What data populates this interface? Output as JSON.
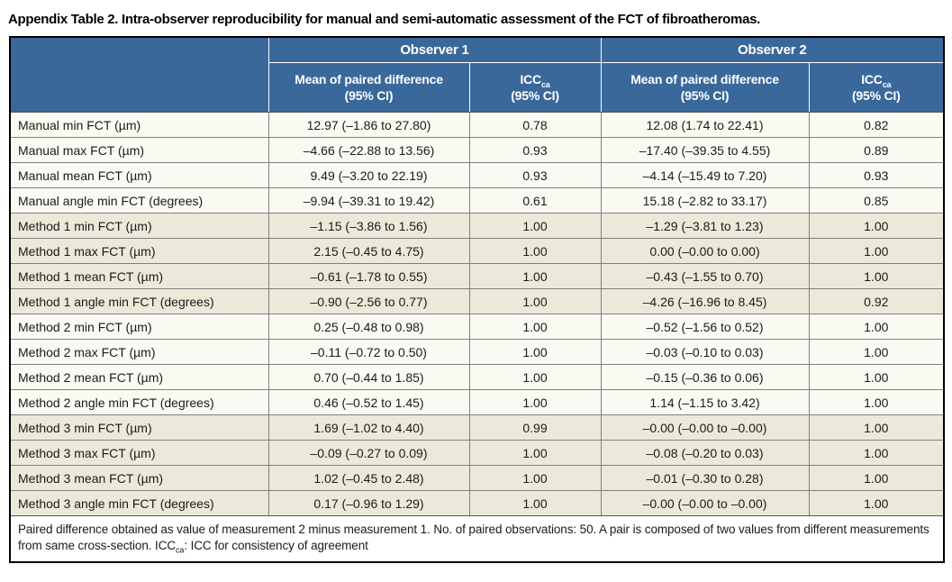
{
  "title": "Appendix Table 2. Intra-observer reproducibility for manual and semi-automatic assessment of the FCT of fibroatheromas.",
  "colors": {
    "header_blue": "#3A689B",
    "row_light": "#FBFAF2",
    "row_beige": "#EDE9DA",
    "header_text": "#FFFFFF",
    "body_text": "#1A1A1A"
  },
  "table": {
    "observer1_label": "Observer 1",
    "observer2_label": "Observer 2",
    "subheader": {
      "mean_line1": "Mean of paired difference",
      "mean_line2": "(95% CI)",
      "icc_label": "ICC",
      "icc_sub": "ca",
      "icc_line2": "(95% CI)"
    },
    "rows": [
      {
        "label": "Manual min FCT (µm)",
        "o1_mean": "12.97 (–1.86 to 27.80)",
        "o1_icc": "0.78",
        "o2_mean": "12.08 (1.74 to 22.41)",
        "o2_icc": "0.82"
      },
      {
        "label": "Manual max FCT (µm)",
        "o1_mean": "–4.66 (–22.88 to 13.56)",
        "o1_icc": "0.93",
        "o2_mean": "–17.40 (–39.35 to 4.55)",
        "o2_icc": "0.89"
      },
      {
        "label": "Manual mean FCT (µm)",
        "o1_mean": "9.49 (–3.20 to 22.19)",
        "o1_icc": "0.93",
        "o2_mean": "–4.14 (–15.49 to 7.20)",
        "o2_icc": "0.93"
      },
      {
        "label": "Manual angle min FCT (degrees)",
        "o1_mean": "–9.94 (–39.31 to 19.42)",
        "o1_icc": "0.61",
        "o2_mean": "15.18 (–2.82 to 33.17)",
        "o2_icc": "0.85"
      },
      {
        "label": "Method 1 min FCT (µm)",
        "o1_mean": "–1.15 (–3.86 to 1.56)",
        "o1_icc": "1.00",
        "o2_mean": "–1.29 (–3.81 to 1.23)",
        "o2_icc": "1.00"
      },
      {
        "label": "Method 1 max FCT (µm)",
        "o1_mean": "2.15 (–0.45 to 4.75)",
        "o1_icc": "1.00",
        "o2_mean": "0.00 (–0.00 to 0.00)",
        "o2_icc": "1.00"
      },
      {
        "label": "Method 1 mean FCT (µm)",
        "o1_mean": "–0.61 (–1.78 to 0.55)",
        "o1_icc": "1.00",
        "o2_mean": "–0.43 (–1.55 to 0.70)",
        "o2_icc": "1.00"
      },
      {
        "label": "Method 1 angle min FCT (degrees)",
        "o1_mean": "–0.90 (–2.56 to 0.77)",
        "o1_icc": "1.00",
        "o2_mean": "–4.26 (–16.96 to 8.45)",
        "o2_icc": "0.92"
      },
      {
        "label": "Method 2 min FCT (µm)",
        "o1_mean": "0.25 (–0.48 to 0.98)",
        "o1_icc": "1.00",
        "o2_mean": "–0.52 (–1.56 to 0.52)",
        "o2_icc": "1.00"
      },
      {
        "label": "Method 2 max FCT (µm)",
        "o1_mean": "–0.11 (–0.72 to 0.50)",
        "o1_icc": "1.00",
        "o2_mean": "–0.03 (–0.10 to 0.03)",
        "o2_icc": "1.00"
      },
      {
        "label": "Method 2 mean FCT (µm)",
        "o1_mean": "0.70 (–0.44 to 1.85)",
        "o1_icc": "1.00",
        "o2_mean": "–0.15 (–0.36 to 0.06)",
        "o2_icc": "1.00"
      },
      {
        "label": "Method 2 angle min FCT (degrees)",
        "o1_mean": "0.46 (–0.52 to 1.45)",
        "o1_icc": "1.00",
        "o2_mean": "1.14 (–1.15 to 3.42)",
        "o2_icc": "1.00"
      },
      {
        "label": "Method 3 min FCT (µm)",
        "o1_mean": "1.69 (–1.02 to 4.40)",
        "o1_icc": "0.99",
        "o2_mean": "–0.00 (–0.00 to –0.00)",
        "o2_icc": "1.00"
      },
      {
        "label": "Method 3 max FCT (µm)",
        "o1_mean": "–0.09 (–0.27 to 0.09)",
        "o1_icc": "1.00",
        "o2_mean": "–0.08 (–0.20 to 0.03)",
        "o2_icc": "1.00"
      },
      {
        "label": "Method 3 mean FCT (µm)",
        "o1_mean": "1.02 (–0.45 to 2.48)",
        "o1_icc": "1.00",
        "o2_mean": "–0.01 (–0.30 to 0.28)",
        "o2_icc": "1.00"
      },
      {
        "label": "Method 3 angle min FCT (degrees)",
        "o1_mean": "0.17 (–0.96 to 1.29)",
        "o1_icc": "1.00",
        "o2_mean": "–0.00 (–0.00 to –0.00)",
        "o2_icc": "1.00"
      }
    ]
  },
  "footnote": {
    "part1": "Paired difference obtained as value of measurement 2 minus measurement 1. No. of paired observations: 50. A pair is composed of two values from different measurements from same cross-section. ICC",
    "sub": "ca",
    "part2": ": ICC for consistency of agreement"
  }
}
